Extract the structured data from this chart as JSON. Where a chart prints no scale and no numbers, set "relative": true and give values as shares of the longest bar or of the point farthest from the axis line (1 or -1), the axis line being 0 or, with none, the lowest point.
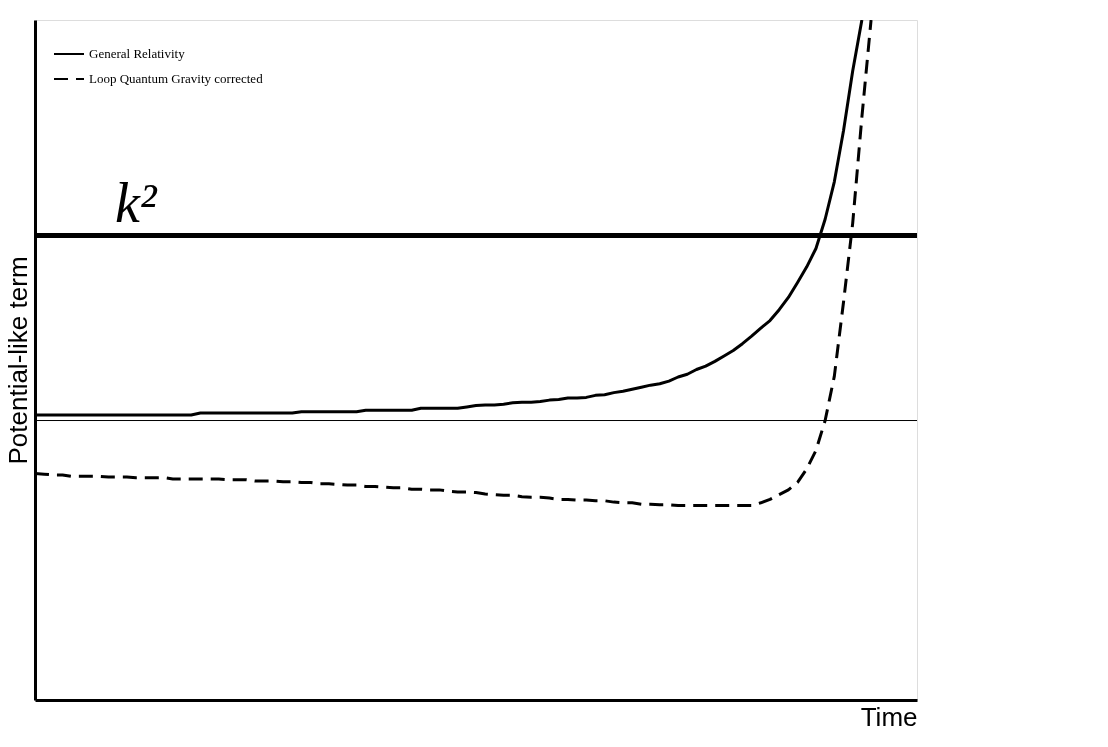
{
  "chart_data": {
    "type": "line",
    "relative": true,
    "xlabel": "Time",
    "ylabel": "Potential-like term",
    "categories": [
      null,
      null,
      null,
      null,
      null,
      null,
      null,
      null,
      null,
      null,
      null,
      null,
      null,
      null,
      null,
      null,
      null,
      null,
      null,
      null,
      null,
      null,
      null,
      null,
      null,
      null,
      null,
      null,
      null,
      null,
      null,
      null,
      null,
      null,
      null,
      null,
      null,
      null,
      null,
      null,
      null,
      null,
      null,
      null,
      null,
      null,
      null,
      null,
      null,
      null,
      null,
      null,
      null,
      null,
      null,
      null,
      null,
      null,
      null,
      null,
      null,
      null,
      null,
      null,
      null,
      null,
      null,
      null,
      null,
      null,
      null,
      null,
      null,
      null,
      null,
      null,
      null,
      null,
      null,
      null,
      null,
      null,
      null,
      null,
      null,
      null,
      null,
      null,
      null,
      null,
      null,
      null,
      null,
      null,
      null,
      null,
      null
    ],
    "series": [
      {
        "name": "General Relativity",
        "color": "#000000",
        "line_style": "solid",
        "values": [
          0.419,
          0.419,
          0.419,
          0.419,
          0.419,
          0.419,
          0.419,
          0.419,
          0.419,
          0.419,
          0.419,
          0.419,
          0.419,
          0.419,
          0.419,
          0.419,
          0.419,
          0.419,
          0.422,
          0.422,
          0.422,
          0.422,
          0.422,
          0.422,
          0.422,
          0.422,
          0.422,
          0.422,
          0.422,
          0.424,
          0.424,
          0.424,
          0.424,
          0.424,
          0.424,
          0.424,
          0.426,
          0.426,
          0.426,
          0.426,
          0.426,
          0.426,
          0.429,
          0.429,
          0.429,
          0.429,
          0.429,
          0.431,
          0.433,
          0.434,
          0.434,
          0.435,
          0.437,
          0.438,
          0.438,
          0.439,
          0.441,
          0.442,
          0.444,
          0.444,
          0.445,
          0.448,
          0.449,
          0.452,
          0.454,
          0.457,
          0.46,
          0.463,
          0.465,
          0.469,
          0.475,
          0.479,
          0.486,
          0.491,
          0.498,
          0.506,
          0.514,
          0.524,
          0.535,
          0.547,
          0.558,
          0.574,
          0.592,
          0.614,
          0.637,
          0.664,
          0.707,
          0.762,
          0.837,
          0.925,
          1.0,
          null,
          null,
          null,
          null,
          null,
          null
        ]
      },
      {
        "name": "Loop Quantum Gravity corrected",
        "color": "#000000",
        "line_style": "dashed",
        "values": [
          0.333,
          0.332,
          0.331,
          0.331,
          0.329,
          0.329,
          0.329,
          0.329,
          0.328,
          0.328,
          0.328,
          0.327,
          0.327,
          0.327,
          0.327,
          0.325,
          0.325,
          0.325,
          0.325,
          0.325,
          0.325,
          0.324,
          0.324,
          0.324,
          0.322,
          0.322,
          0.322,
          0.321,
          0.321,
          0.32,
          0.32,
          0.318,
          0.318,
          0.317,
          0.316,
          0.316,
          0.314,
          0.314,
          0.313,
          0.312,
          0.312,
          0.31,
          0.31,
          0.309,
          0.309,
          0.307,
          0.306,
          0.306,
          0.305,
          0.303,
          0.302,
          0.301,
          0.301,
          0.299,
          0.298,
          0.298,
          0.297,
          0.295,
          0.295,
          0.294,
          0.294,
          0.293,
          0.293,
          0.291,
          0.29,
          0.29,
          0.288,
          0.288,
          0.287,
          0.287,
          0.286,
          0.286,
          0.286,
          0.286,
          0.286,
          0.286,
          0.286,
          0.286,
          0.286,
          0.29,
          0.295,
          0.302,
          0.309,
          0.32,
          0.34,
          0.367,
          0.411,
          0.476,
          0.585,
          0.701,
          0.857,
          1.0,
          null,
          null,
          null,
          null,
          null
        ]
      }
    ],
    "ref_lines": [
      {
        "axis": "y",
        "value": 0.683,
        "label": "k²",
        "color": "#000000"
      },
      {
        "axis": "y",
        "value": 0.411,
        "label": null,
        "color": "#000000"
      }
    ],
    "legend": "top left"
  }
}
